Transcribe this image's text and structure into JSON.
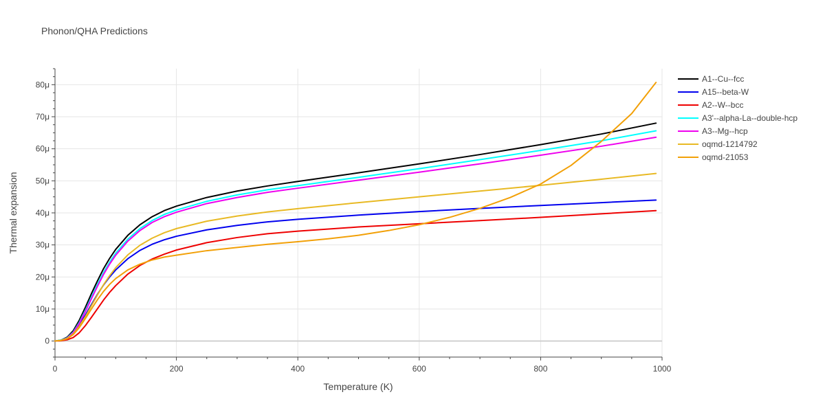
{
  "chart_data": {
    "type": "line",
    "title": "Phonon/QHA Predictions",
    "xlabel": "Temperature (K)",
    "ylabel": "Thermal expansion",
    "xlim": [
      0,
      1000
    ],
    "ylim": [
      -5e-06,
      8.5e-05
    ],
    "x_ticks": [
      0,
      200,
      400,
      600,
      800,
      1000
    ],
    "x_tick_labels": [
      "0",
      "200",
      "400",
      "600",
      "800",
      "1000"
    ],
    "y_ticks": [
      0,
      1e-05,
      2e-05,
      3e-05,
      4e-05,
      5e-05,
      6e-05,
      7e-05,
      8e-05
    ],
    "y_tick_labels": [
      "0",
      "10μ",
      "20μ",
      "30μ",
      "40μ",
      "50μ",
      "60μ",
      "70μ",
      "80μ"
    ],
    "grid": true,
    "legend_position": "top-right",
    "series": [
      {
        "name": "A1--Cu--fcc",
        "color": "#000000",
        "x": [
          0,
          10,
          20,
          30,
          40,
          50,
          60,
          70,
          80,
          90,
          100,
          120,
          140,
          160,
          180,
          200,
          250,
          300,
          350,
          400,
          500,
          600,
          700,
          800,
          900,
          990
        ],
        "y": [
          0,
          3e-07,
          1.2e-06,
          3.2e-06,
          6.5e-06,
          1.05e-05,
          1.48e-05,
          1.88e-05,
          2.26e-05,
          2.58e-05,
          2.86e-05,
          3.3e-05,
          3.63e-05,
          3.88e-05,
          4.07e-05,
          4.21e-05,
          4.48e-05,
          4.68e-05,
          4.84e-05,
          4.98e-05,
          5.25e-05,
          5.53e-05,
          5.82e-05,
          6.13e-05,
          6.46e-05,
          6.8e-05
        ]
      },
      {
        "name": "A15--beta-W",
        "color": "#0000ee",
        "x": [
          0,
          10,
          20,
          30,
          40,
          50,
          60,
          70,
          80,
          90,
          100,
          120,
          140,
          160,
          180,
          200,
          250,
          300,
          350,
          400,
          500,
          600,
          700,
          800,
          900,
          990
        ],
        "y": [
          0,
          2e-07,
          9e-07,
          2.4e-06,
          5e-06,
          8.1e-06,
          1.14e-05,
          1.46e-05,
          1.75e-05,
          2e-05,
          2.22e-05,
          2.57e-05,
          2.83e-05,
          3.02e-05,
          3.16e-05,
          3.27e-05,
          3.47e-05,
          3.61e-05,
          3.72e-05,
          3.8e-05,
          3.93e-05,
          4.04e-05,
          4.14e-05,
          4.23e-05,
          4.32e-05,
          4.4e-05
        ]
      },
      {
        "name": "A2--W--bcc",
        "color": "#ee0000",
        "x": [
          0,
          10,
          20,
          30,
          40,
          50,
          60,
          70,
          80,
          90,
          100,
          120,
          140,
          160,
          180,
          200,
          250,
          300,
          350,
          400,
          500,
          600,
          700,
          800,
          900,
          990
        ],
        "y": [
          0,
          1e-07,
          4e-07,
          1.1e-06,
          2.6e-06,
          4.8e-06,
          7.4e-06,
          1.01e-05,
          1.28e-05,
          1.52e-05,
          1.73e-05,
          2.09e-05,
          2.36e-05,
          2.56e-05,
          2.71e-05,
          2.84e-05,
          3.07e-05,
          3.23e-05,
          3.35e-05,
          3.43e-05,
          3.56e-05,
          3.66e-05,
          3.76e-05,
          3.86e-05,
          3.97e-05,
          4.07e-05
        ]
      },
      {
        "name": "A3'--alpha-La--double-hcp",
        "color": "#00ffff",
        "x": [
          0,
          10,
          20,
          30,
          40,
          50,
          60,
          70,
          80,
          90,
          100,
          120,
          140,
          160,
          180,
          200,
          250,
          300,
          350,
          400,
          500,
          600,
          700,
          800,
          900,
          990
        ],
        "y": [
          0,
          3e-07,
          1e-06,
          2.8e-06,
          5.8e-06,
          9.6e-06,
          1.37e-05,
          1.77e-05,
          2.14e-05,
          2.46e-05,
          2.74e-05,
          3.18e-05,
          3.51e-05,
          3.76e-05,
          3.95e-05,
          4.09e-05,
          4.36e-05,
          4.56e-05,
          4.72e-05,
          4.85e-05,
          5.11e-05,
          5.38e-05,
          5.66e-05,
          5.95e-05,
          6.25e-05,
          6.56e-05
        ]
      },
      {
        "name": "A3--Mg--hcp",
        "color": "#ee00ee",
        "x": [
          0,
          10,
          20,
          30,
          40,
          50,
          60,
          70,
          80,
          90,
          100,
          120,
          140,
          160,
          180,
          200,
          250,
          300,
          350,
          400,
          500,
          600,
          700,
          800,
          900,
          990
        ],
        "y": [
          0,
          2e-07,
          9e-07,
          2.6e-06,
          5.5e-06,
          9.2e-06,
          1.32e-05,
          1.71e-05,
          2.08e-05,
          2.4e-05,
          2.68e-05,
          3.12e-05,
          3.45e-05,
          3.7e-05,
          3.88e-05,
          4.02e-05,
          4.29e-05,
          4.48e-05,
          4.64e-05,
          4.77e-05,
          5.02e-05,
          5.27e-05,
          5.53e-05,
          5.8e-05,
          6.08e-05,
          6.36e-05
        ]
      },
      {
        "name": "oqmd-1214792",
        "color": "#e8b923",
        "x": [
          0,
          10,
          20,
          30,
          40,
          50,
          60,
          70,
          80,
          90,
          100,
          120,
          140,
          160,
          180,
          200,
          250,
          300,
          350,
          400,
          500,
          600,
          700,
          800,
          900,
          990
        ],
        "y": [
          0,
          2e-07,
          8e-07,
          2.2e-06,
          4.6e-06,
          7.6e-06,
          1.1e-05,
          1.44e-05,
          1.76e-05,
          2.04e-05,
          2.29e-05,
          2.69e-05,
          2.99e-05,
          3.21e-05,
          3.38e-05,
          3.51e-05,
          3.74e-05,
          3.9e-05,
          4.03e-05,
          4.13e-05,
          4.32e-05,
          4.5e-05,
          4.68e-05,
          4.86e-05,
          5.05e-05,
          5.23e-05
        ]
      },
      {
        "name": "oqmd-21053",
        "color": "#f2a007",
        "x": [
          0,
          10,
          20,
          30,
          40,
          50,
          60,
          70,
          80,
          90,
          100,
          120,
          140,
          160,
          180,
          200,
          250,
          300,
          350,
          400,
          450,
          500,
          550,
          600,
          650,
          700,
          750,
          800,
          850,
          900,
          950,
          990
        ],
        "y": [
          0,
          2e-07,
          7e-07,
          2e-06,
          4.2e-06,
          7e-06,
          1e-05,
          1.29e-05,
          1.55e-05,
          1.77e-05,
          1.95e-05,
          2.22e-05,
          2.4e-05,
          2.53e-05,
          2.62e-05,
          2.68e-05,
          2.82e-05,
          2.92e-05,
          3.02e-05,
          3.1e-05,
          3.19e-05,
          3.3e-05,
          3.45e-05,
          3.63e-05,
          3.86e-05,
          4.14e-05,
          4.48e-05,
          4.9e-05,
          5.48e-05,
          6.23e-05,
          7.1e-05,
          8.07e-05
        ]
      }
    ]
  }
}
